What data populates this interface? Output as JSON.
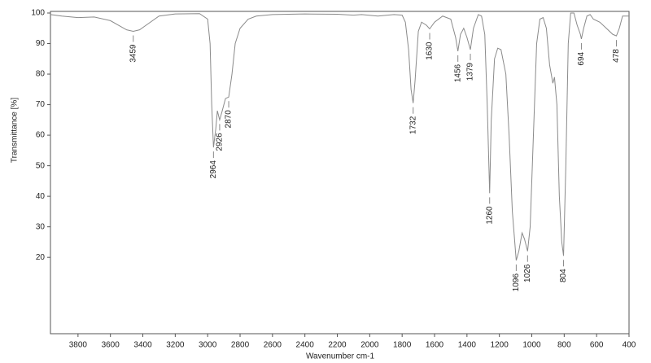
{
  "chart_data": {
    "type": "line",
    "x_label": "Wavenumber cm-1",
    "y_label": "Transmittance [%]",
    "color": "#8a8a8a",
    "xlim": [
      3970,
      400
    ],
    "ylim": [
      -5,
      100
    ],
    "xticks": [
      3800,
      3600,
      3400,
      3200,
      3000,
      2800,
      2600,
      2400,
      2200,
      2000,
      1800,
      1600,
      1400,
      1200,
      1000,
      800,
      600,
      400
    ],
    "yticks": [
      20,
      30,
      40,
      50,
      60,
      70,
      80,
      90,
      100
    ],
    "x": [
      3970,
      3900,
      3800,
      3700,
      3600,
      3550,
      3500,
      3459,
      3420,
      3380,
      3300,
      3200,
      3050,
      3000,
      2985,
      2975,
      2964,
      2950,
      2940,
      2926,
      2910,
      2890,
      2870,
      2850,
      2830,
      2800,
      2750,
      2700,
      2600,
      2400,
      2200,
      2100,
      2050,
      1950,
      1850,
      1800,
      1780,
      1760,
      1745,
      1732,
      1720,
      1700,
      1680,
      1650,
      1630,
      1600,
      1550,
      1500,
      1470,
      1456,
      1440,
      1420,
      1400,
      1379,
      1360,
      1330,
      1310,
      1290,
      1275,
      1260,
      1250,
      1230,
      1210,
      1190,
      1160,
      1140,
      1120,
      1096,
      1080,
      1060,
      1045,
      1026,
      1010,
      990,
      970,
      950,
      930,
      910,
      890,
      870,
      860,
      845,
      830,
      815,
      804,
      790,
      775,
      760,
      740,
      720,
      700,
      694,
      680,
      660,
      640,
      620,
      580,
      540,
      500,
      478,
      460,
      440,
      400
    ],
    "values": [
      99.5,
      99,
      98.5,
      98.7,
      97.5,
      96,
      94.5,
      94,
      94.5,
      96,
      99,
      99.7,
      99.8,
      98,
      90,
      70,
      56,
      62,
      68,
      65,
      68,
      72,
      72.5,
      80,
      90,
      95,
      98,
      99,
      99.5,
      99.7,
      99.6,
      99.3,
      99.5,
      99,
      99.5,
      99.3,
      97,
      88,
      75,
      70.5,
      78,
      94,
      97,
      96,
      94.8,
      97,
      99,
      98,
      92,
      87.5,
      93,
      95,
      92,
      88,
      95,
      99.5,
      99,
      93,
      70,
      41,
      65,
      85,
      88.5,
      88,
      80,
      60,
      35,
      19,
      22,
      28,
      26,
      22,
      30,
      60,
      90,
      98,
      98.5,
      95,
      83,
      77,
      79,
      70,
      40,
      25,
      20.5,
      50,
      90,
      100,
      100,
      96,
      93,
      91.5,
      95,
      99,
      99.5,
      98,
      97,
      95,
      93,
      92.5,
      95,
      99,
      99
    ],
    "peaks": [
      {
        "x": 3459,
        "y": 94
      },
      {
        "x": 2964,
        "y": 56
      },
      {
        "x": 2926,
        "y": 65
      },
      {
        "x": 2870,
        "y": 72.5
      },
      {
        "x": 1732,
        "y": 70.5
      },
      {
        "x": 1630,
        "y": 94.8
      },
      {
        "x": 1456,
        "y": 87.5
      },
      {
        "x": 1379,
        "y": 88
      },
      {
        "x": 1260,
        "y": 41
      },
      {
        "x": 1096,
        "y": 19
      },
      {
        "x": 1026,
        "y": 22
      },
      {
        "x": 804,
        "y": 20.5
      },
      {
        "x": 694,
        "y": 91.5
      },
      {
        "x": 478,
        "y": 92.5
      }
    ]
  }
}
